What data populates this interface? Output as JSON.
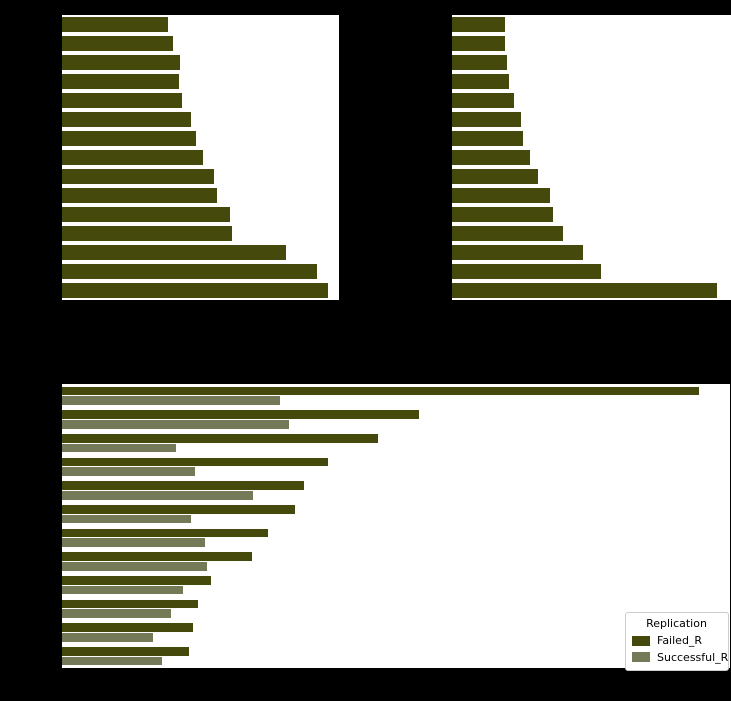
{
  "figure": {
    "background_color": "#000000",
    "panel_background_color": "#ffffff",
    "note": "axis titles and tick labels are rendered in black over the black background and are not legible in the screenshot"
  },
  "colors": {
    "failed_bar": "#454a0c",
    "successful_bar": "#747a58",
    "legend_border": "#cccccc",
    "legend_text": "#000000"
  },
  "legend": {
    "title": "Replication",
    "entries": [
      {
        "label": "Failed_R",
        "color": "#454a0c"
      },
      {
        "label": "Successful_R",
        "color": "#747a58"
      }
    ]
  },
  "chart_data": [
    {
      "id": "top_left",
      "type": "bar",
      "orientation": "horizontal",
      "bar_color": "#454a0c",
      "categories_visible": false,
      "axis_range_fraction": [
        0,
        1
      ],
      "bar_length_fractions": [
        0.383,
        0.4,
        0.426,
        0.424,
        0.435,
        0.464,
        0.483,
        0.51,
        0.547,
        0.561,
        0.605,
        0.612,
        0.808,
        0.92,
        0.96
      ]
    },
    {
      "id": "top_right",
      "type": "bar",
      "orientation": "horizontal",
      "bar_color": "#454a0c",
      "categories_visible": false,
      "axis_range_fraction": [
        0,
        1
      ],
      "bar_length_fractions": [
        0.191,
        0.191,
        0.197,
        0.204,
        0.222,
        0.247,
        0.254,
        0.28,
        0.308,
        0.351,
        0.361,
        0.398,
        0.468,
        0.534,
        0.95
      ]
    },
    {
      "id": "bottom",
      "type": "bar",
      "orientation": "horizontal",
      "grouped": true,
      "categories_visible": false,
      "legend_position": "lower right",
      "axis_range_fraction": [
        0,
        1
      ],
      "series": [
        {
          "name": "Failed_R",
          "color": "#454a0c",
          "bar_length_fractions": [
            0.954,
            0.534,
            0.473,
            0.398,
            0.362,
            0.349,
            0.308,
            0.284,
            0.223,
            0.204,
            0.196,
            0.19
          ]
        },
        {
          "name": "Successful_R",
          "color": "#747a58",
          "bar_length_fractions": [
            0.326,
            0.34,
            0.171,
            0.199,
            0.286,
            0.193,
            0.214,
            0.217,
            0.181,
            0.163,
            0.136,
            0.15
          ]
        }
      ]
    }
  ]
}
